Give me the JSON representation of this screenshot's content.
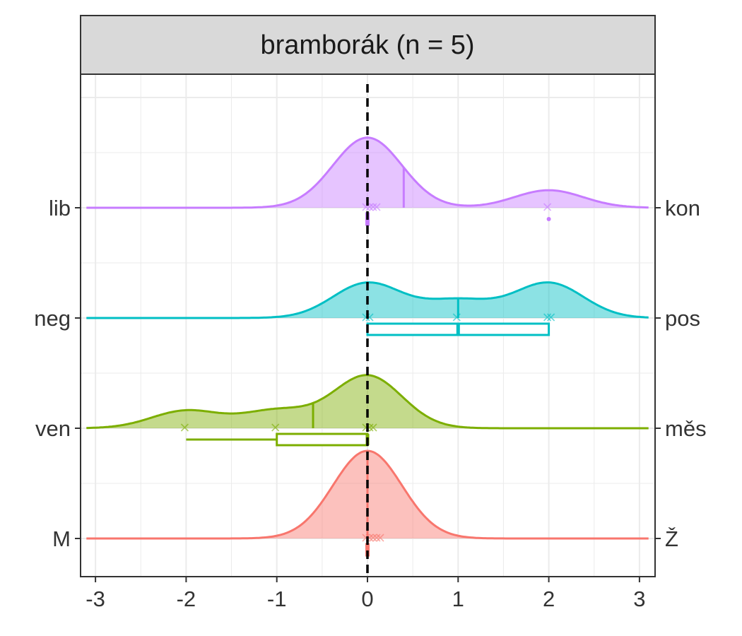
{
  "chart_data": {
    "type": "ridgeline",
    "title": "bramborák (n = 5)",
    "xlim": [
      -3.1,
      3.1
    ],
    "x_ticks": [
      "-3",
      "-2",
      "-1",
      "0",
      "1",
      "2",
      "3"
    ],
    "reference_line_x": 0,
    "grid": true,
    "rows": [
      {
        "left_label": "M",
        "right_label": "Ž",
        "color": "#F8766D",
        "points": [
          0,
          0,
          0,
          0,
          0
        ],
        "mean": 0,
        "boxplot": {
          "min": 0,
          "q1": 0,
          "median": 0,
          "q3": 0,
          "max": 0
        }
      },
      {
        "left_label": "ven",
        "right_label": "měs",
        "color": "#7CAE00",
        "points": [
          -2,
          -1,
          0,
          0,
          0
        ],
        "mean": -0.6,
        "boxplot": {
          "min": -2,
          "q1": -1,
          "median": 0,
          "q3": 0,
          "max": 0
        }
      },
      {
        "left_label": "neg",
        "right_label": "pos",
        "color": "#00BFC4",
        "points": [
          0,
          1,
          2,
          2,
          0
        ],
        "mean": 1,
        "boxplot": {
          "min": 0,
          "q1": 0,
          "median": 1,
          "q3": 2,
          "max": 2
        }
      },
      {
        "left_label": "lib",
        "right_label": "kon",
        "color": "#C77CFF",
        "points": [
          0,
          0,
          0,
          0,
          2
        ],
        "mean": 0.4,
        "boxplot": {
          "min": 0,
          "q1": 0,
          "median": 0,
          "q3": 0,
          "max": 0,
          "outliers": [
            2
          ]
        }
      }
    ]
  }
}
